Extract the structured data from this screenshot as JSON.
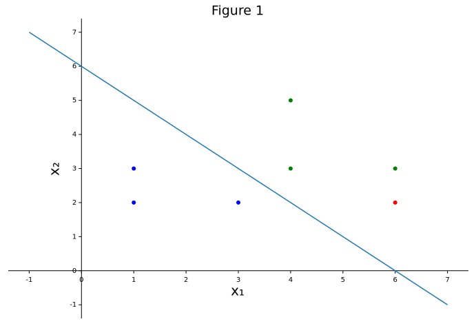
{
  "chart_data": {
    "type": "scatter",
    "title": "Figure 1",
    "xlabel": "x₁",
    "ylabel": "x₂",
    "xlim": [
      -1.4,
      7.4
    ],
    "ylim": [
      -1.4,
      7.4
    ],
    "xticks": [
      -1,
      0,
      1,
      2,
      3,
      4,
      5,
      6,
      7
    ],
    "yticks": [
      -1,
      0,
      1,
      2,
      3,
      4,
      5,
      6,
      7
    ],
    "series": [
      {
        "type": "scatter",
        "color": "#0000ff",
        "x": [
          1,
          1,
          3
        ],
        "y": [
          3,
          2,
          2
        ]
      },
      {
        "type": "scatter",
        "color": "#008000",
        "x": [
          4,
          4,
          6
        ],
        "y": [
          5,
          3,
          3
        ]
      },
      {
        "type": "scatter",
        "color": "#ff0000",
        "x": [
          6
        ],
        "y": [
          2
        ]
      },
      {
        "type": "line",
        "color": "#1f77b4",
        "x": [
          -1,
          7
        ],
        "y": [
          7,
          -1
        ]
      }
    ]
  }
}
